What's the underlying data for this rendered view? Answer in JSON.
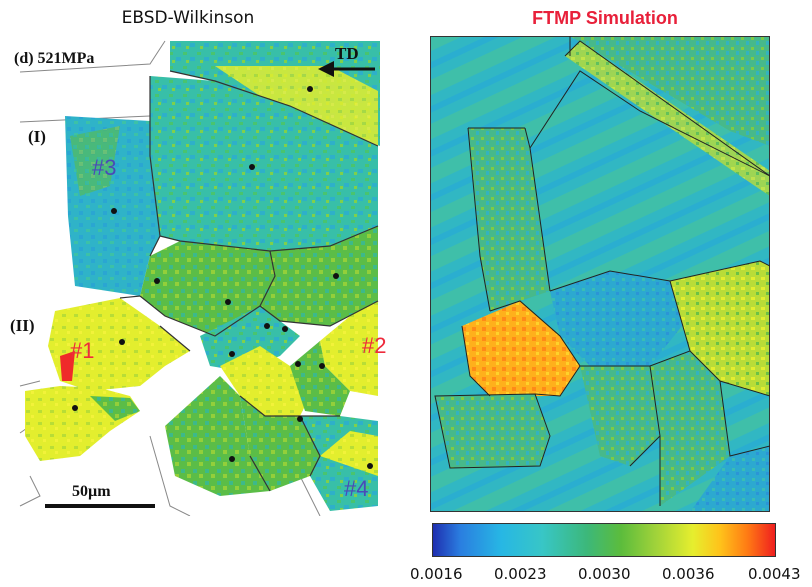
{
  "titles": {
    "left": "EBSD-Wilkinson",
    "right": "FTMP Simulation"
  },
  "left_panel": {
    "stress_label": "(d) 521MPa",
    "direction_label": "TD",
    "region_labels": [
      "(I)",
      "(II)"
    ],
    "grain_labels": [
      {
        "text": "#3",
        "color": "#4a4ab8"
      },
      {
        "text": "#1",
        "color": "#ee2b3c"
      },
      {
        "text": "#2",
        "color": "#ee2b3c"
      },
      {
        "text": "#4",
        "color": "#4a4ab8"
      }
    ],
    "scale_bar": "50µm"
  },
  "colorbar": {
    "ticks": [
      "0.0016",
      "0.0023",
      "0.0030",
      "0.0036",
      "0.0043"
    ],
    "min": 0.0016,
    "max": 0.0043
  },
  "colors": {
    "title_right": "#e8203a",
    "grain_red": "#ee2b3c",
    "grain_blue": "#4a4ab8"
  }
}
